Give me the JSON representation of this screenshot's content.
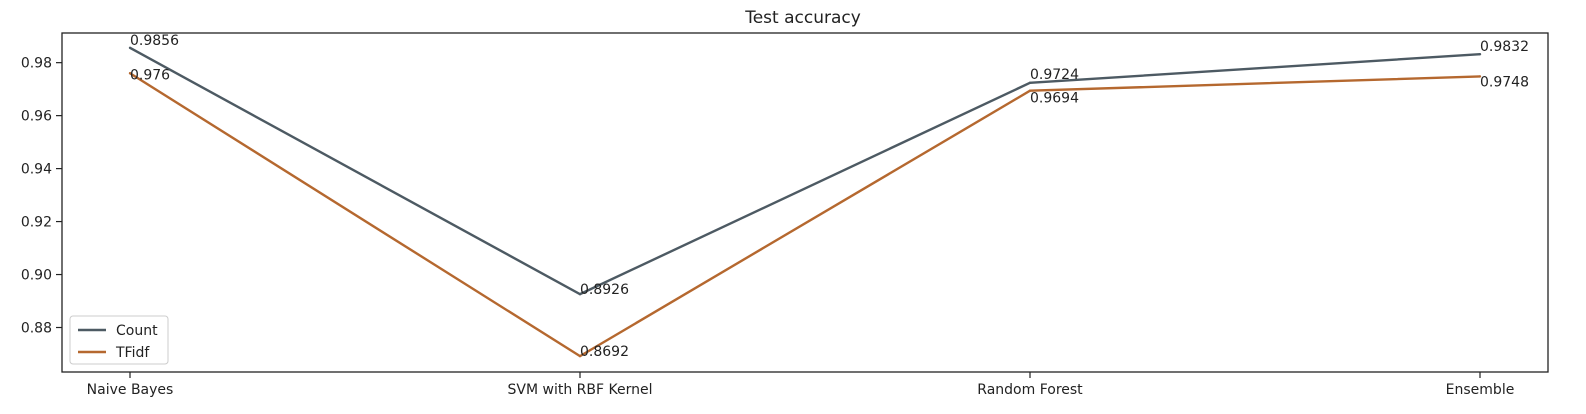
{
  "chart_data": {
    "type": "line",
    "title": "Test accuracy",
    "xlabel": "",
    "ylabel": "",
    "categories": [
      "Naive Bayes",
      "SVM with RBF Kernel",
      "Random Forest",
      "Ensemble"
    ],
    "series": [
      {
        "name": "Count",
        "values": [
          0.9856,
          0.8926,
          0.9724,
          0.9832
        ],
        "color": "#4d5a63",
        "labels": [
          "0.9856",
          "0.8926",
          "0.9724",
          "0.9832"
        ]
      },
      {
        "name": "TFidf",
        "values": [
          0.976,
          0.8692,
          0.9694,
          0.9748
        ],
        "color": "#b5682f",
        "labels": [
          "0.976",
          "0.8692",
          "0.9694",
          "0.9748"
        ]
      }
    ],
    "ylim": [
      0.8632,
      0.9912
    ],
    "yticks": [
      0.88,
      0.9,
      0.92,
      0.94,
      0.96,
      0.98
    ],
    "ytick_labels": [
      "0.88",
      "0.90",
      "0.92",
      "0.94",
      "0.96",
      "0.98"
    ],
    "grid": false,
    "legend_position": "lower-left"
  }
}
